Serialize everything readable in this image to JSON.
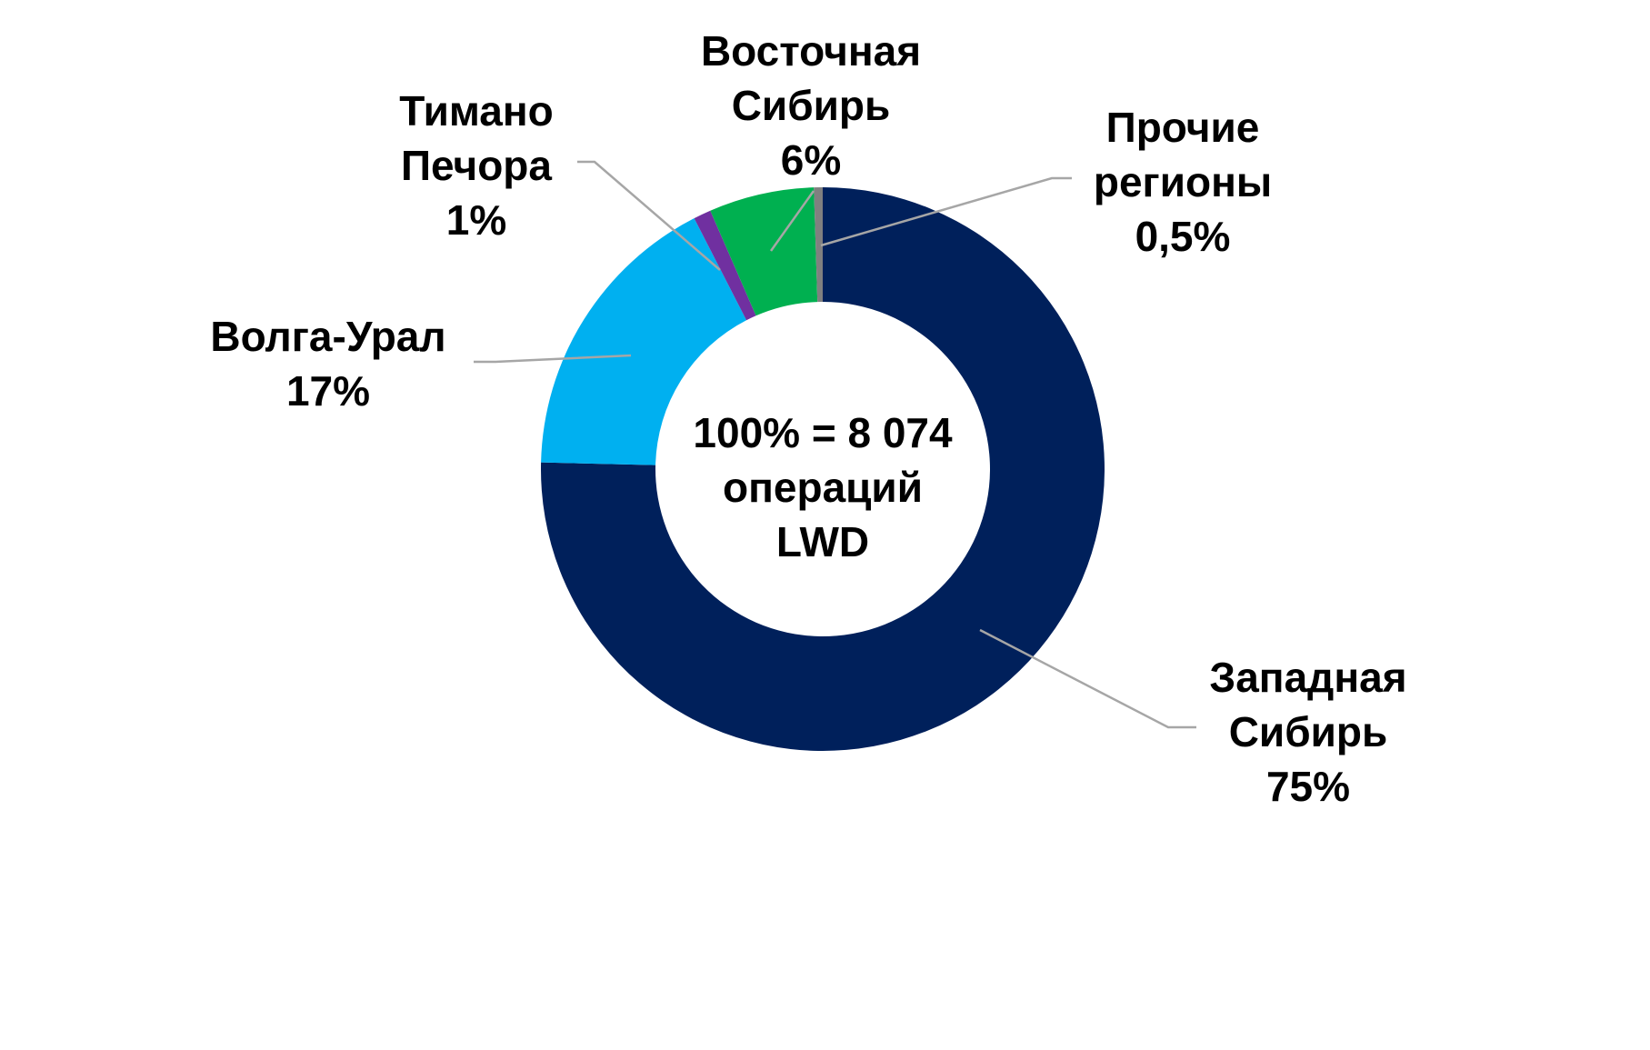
{
  "chart_data": {
    "type": "donut",
    "center_label": "100% = 8 074\nопераций\nLWD",
    "categories": [
      "Западная\nСибирь",
      "Волга-Урал",
      "Тимано\nПечора",
      "Восточная\nСибирь",
      "Прочие\nрегионы"
    ],
    "values": [
      75,
      17,
      1,
      6,
      0.5
    ],
    "value_labels": [
      "75%",
      "17%",
      "1%",
      "6%",
      "0,5%"
    ],
    "colors": [
      "#00205b",
      "#00b0f0",
      "#7030a0",
      "#00b050",
      "#808080"
    ]
  }
}
